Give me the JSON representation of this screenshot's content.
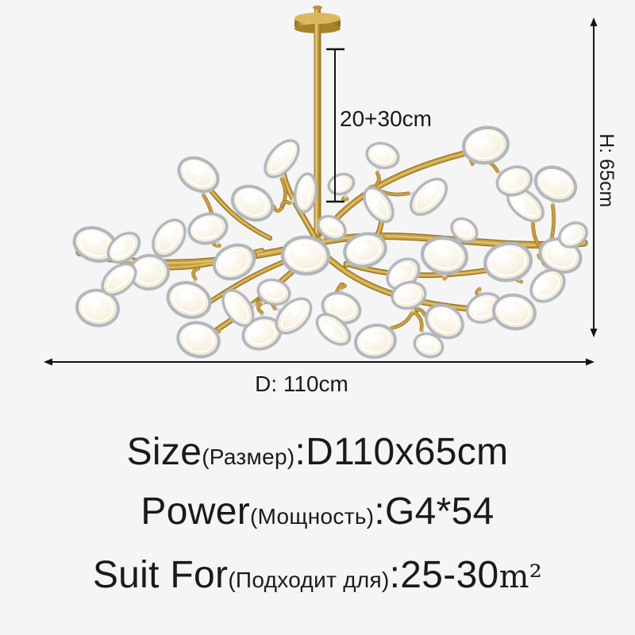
{
  "colors": {
    "background": "#f5f5f5",
    "text": "#1a1a1a",
    "dimension_line": "#141414",
    "gold": "#c89e3f",
    "gold_dark": "#8f6d20",
    "gold_light": "#ecd27c",
    "lamp_rim": "#b2b7be",
    "lamp_fill": "#f6f0de",
    "connector": "#d9dade"
  },
  "icons": {
    "height_arrow": "↕",
    "diameter_arrow": "↔",
    "rod_measure_bracket": "⊤⊥"
  },
  "dimensions": {
    "rod_label": "20+30cm",
    "height_label": "H: 65cm",
    "diameter_label": "D: 110cm"
  },
  "specs": [
    {
      "label": "Size",
      "sub": "(Размер)",
      "value": ":D110x65cm",
      "unit": ""
    },
    {
      "label": "Power",
      "sub": "(Мощность)",
      "value": ":G4*54",
      "unit": ""
    },
    {
      "label": "Suit For",
      "sub": "(Подходит для)",
      "value": ":25-30",
      "unit": "m²"
    }
  ]
}
